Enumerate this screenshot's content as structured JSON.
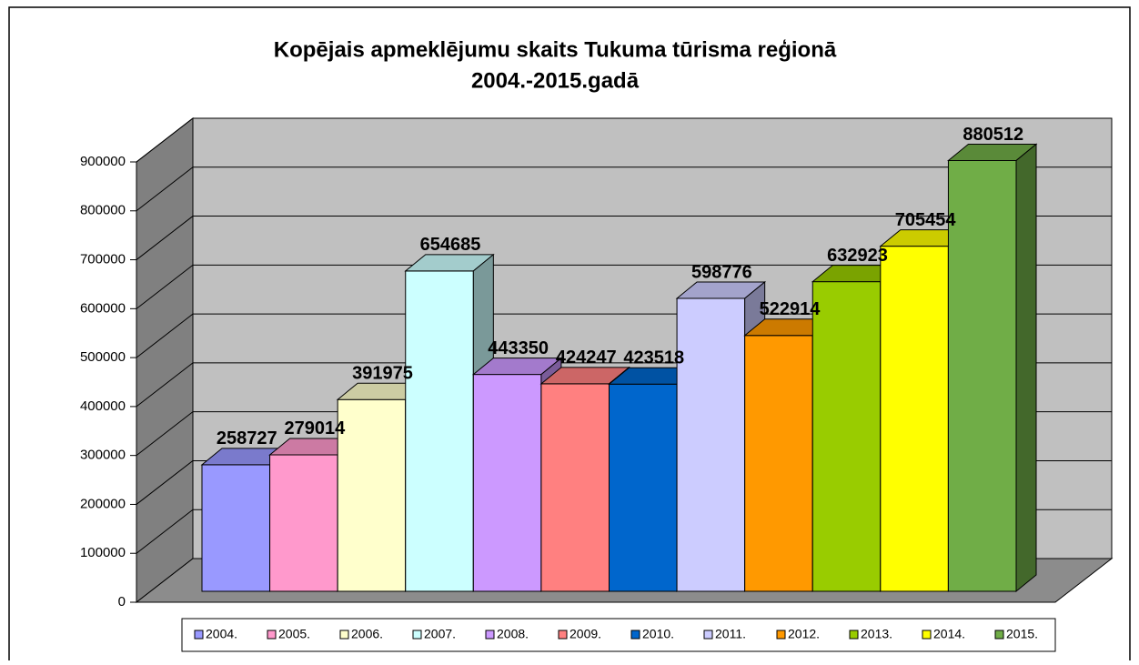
{
  "chart_data": {
    "type": "bar3d",
    "title": "Kopējais apmeklējumu skaits Tukuma tūrisma reģionā",
    "subtitle": "2004.-2015.gadā",
    "categories": [
      "2004.",
      "2005.",
      "2006.",
      "2007.",
      "2008.",
      "2009.",
      "2010.",
      "2011.",
      "2012.",
      "2013.",
      "2014.",
      "2015."
    ],
    "values": [
      258727,
      279014,
      391975,
      654685,
      443350,
      424247,
      423518,
      598776,
      522914,
      632923,
      705454,
      880512
    ],
    "colors": [
      "#9999ff",
      "#ff99cc",
      "#ffffcc",
      "#ccffff",
      "#cc99ff",
      "#ff8080",
      "#0066cc",
      "#ccccff",
      "#ff9900",
      "#99cc00",
      "#ffff00",
      "#70ad47"
    ],
    "ylim": [
      0,
      900000
    ],
    "yticks": [
      0,
      100000,
      200000,
      300000,
      400000,
      500000,
      600000,
      700000,
      800000,
      900000
    ],
    "grid": true,
    "legend": "bottom"
  }
}
